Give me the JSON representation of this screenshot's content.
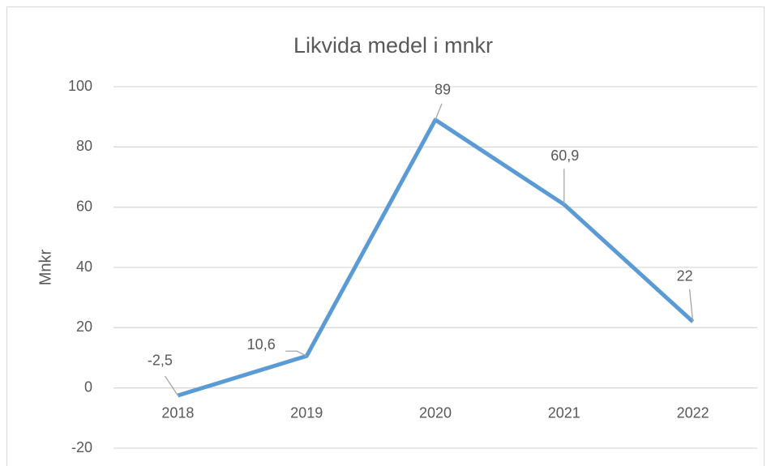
{
  "chart_data": {
    "type": "line",
    "title": "Likvida medel i mnkr",
    "y_label": "Mnkr",
    "categories": [
      "2018",
      "2019",
      "2020",
      "2021",
      "2022"
    ],
    "values": [
      -2.5,
      10.6,
      89,
      60.9,
      22
    ],
    "value_labels": [
      "-2,5",
      "10,6",
      "89",
      "60,9",
      "22"
    ],
    "color": "#5b9bd5",
    "ylim": [
      -20,
      100
    ],
    "yticks": [
      -20,
      0,
      20,
      40,
      60,
      80,
      100
    ],
    "grid": true
  }
}
